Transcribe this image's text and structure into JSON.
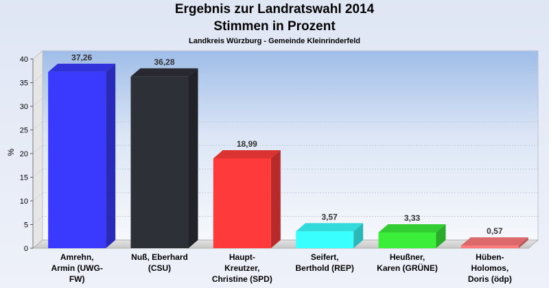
{
  "chart_data": {
    "type": "bar",
    "title": "Ergebnis zur Landratswahl 2014",
    "subtitle": "Stimmen in Prozent",
    "caption": "Landkreis Würzburg - Gemeinde Kleinrinderfeld",
    "xlabel": "",
    "ylabel": "%",
    "ylim": [
      0,
      40
    ],
    "yticks": [
      0,
      5,
      10,
      15,
      20,
      25,
      30,
      35,
      40
    ],
    "grid": true,
    "legend": "none",
    "categories": [
      [
        "Amrehn,",
        "Armin (UWG-",
        "FW)"
      ],
      [
        "Nuß, Eberhard",
        "(CSU)"
      ],
      [
        "Haupt-",
        "Kreutzer,",
        "Christine (SPD)"
      ],
      [
        "Seifert,",
        "Berthold (REP)"
      ],
      [
        "Heußner,",
        "Karen (GRÜNE)"
      ],
      [
        "Hüben-",
        "Holomos,",
        "Doris (ödp)"
      ]
    ],
    "values": [
      37.26,
      36.28,
      18.99,
      3.57,
      3.33,
      0.57
    ],
    "value_labels": [
      "37,26",
      "36,28",
      "18,99",
      "3,57",
      "3,33",
      "0,57"
    ],
    "colors": [
      "#3a3aff",
      "#2e3038",
      "#ff3a3a",
      "#3affff",
      "#3aee3a",
      "#ff7a7a"
    ]
  }
}
